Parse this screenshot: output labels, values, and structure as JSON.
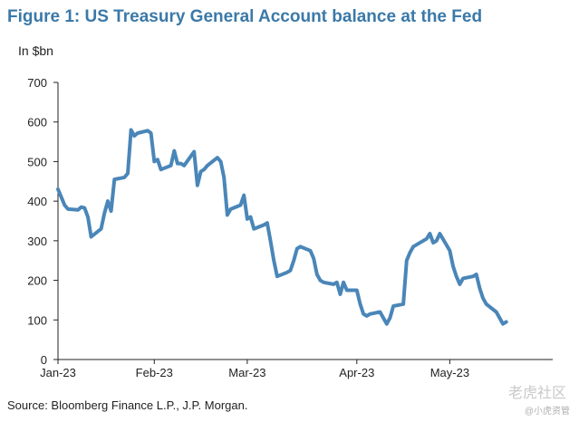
{
  "title": "Figure 1: US Treasury General Account balance at the Fed",
  "unit_label": "In $bn",
  "source": "Source: Bloomberg Finance L.P., J.P. Morgan.",
  "watermark": "老虎社区",
  "watermark_sub": "@小虎资管",
  "colors": {
    "title": "#3b79a8",
    "line": "#4a86b8",
    "axis": "#222222"
  },
  "chart_data": {
    "type": "line",
    "title": "Figure 1: US Treasury General Account balance at the Fed",
    "ylabel": "In $bn",
    "xlabel": "",
    "ylim": [
      0,
      700
    ],
    "yticks": [
      0,
      100,
      200,
      300,
      400,
      500,
      600,
      700
    ],
    "xlim": [
      "2023-01-03",
      "2023-06-01"
    ],
    "xticks": [
      {
        "label": "Jan-23",
        "date": "2023-01-03"
      },
      {
        "label": "Feb-23",
        "date": "2023-02-01"
      },
      {
        "label": "Mar-23",
        "date": "2023-03-01"
      },
      {
        "label": "Apr-23",
        "date": "2023-04-03"
      },
      {
        "label": "May-23",
        "date": "2023-05-01"
      }
    ],
    "grid": false,
    "legend": "none",
    "series": [
      {
        "name": "",
        "points": [
          [
            "2023-01-03",
            430
          ],
          [
            "2023-01-04",
            410
          ],
          [
            "2023-01-05",
            390
          ],
          [
            "2023-01-06",
            380
          ],
          [
            "2023-01-09",
            378
          ],
          [
            "2023-01-10",
            385
          ],
          [
            "2023-01-11",
            383
          ],
          [
            "2023-01-12",
            360
          ],
          [
            "2023-01-13",
            310
          ],
          [
            "2023-01-16",
            330
          ],
          [
            "2023-01-17",
            370
          ],
          [
            "2023-01-18",
            400
          ],
          [
            "2023-01-19",
            375
          ],
          [
            "2023-01-20",
            455
          ],
          [
            "2023-01-23",
            460
          ],
          [
            "2023-01-24",
            470
          ],
          [
            "2023-01-25",
            580
          ],
          [
            "2023-01-26",
            565
          ],
          [
            "2023-01-27",
            572
          ],
          [
            "2023-01-30",
            578
          ],
          [
            "2023-01-31",
            572
          ],
          [
            "2023-02-01",
            500
          ],
          [
            "2023-02-02",
            505
          ],
          [
            "2023-02-03",
            480
          ],
          [
            "2023-02-06",
            490
          ],
          [
            "2023-02-07",
            527
          ],
          [
            "2023-02-08",
            495
          ],
          [
            "2023-02-09",
            495
          ],
          [
            "2023-02-10",
            490
          ],
          [
            "2023-02-13",
            525
          ],
          [
            "2023-02-14",
            440
          ],
          [
            "2023-02-15",
            475
          ],
          [
            "2023-02-16",
            480
          ],
          [
            "2023-02-17",
            490
          ],
          [
            "2023-02-20",
            510
          ],
          [
            "2023-02-21",
            500
          ],
          [
            "2023-02-22",
            460
          ],
          [
            "2023-02-23",
            365
          ],
          [
            "2023-02-24",
            380
          ],
          [
            "2023-02-27",
            390
          ],
          [
            "2023-02-28",
            415
          ],
          [
            "2023-03-01",
            355
          ],
          [
            "2023-03-02",
            360
          ],
          [
            "2023-03-03",
            330
          ],
          [
            "2023-03-06",
            340
          ],
          [
            "2023-03-07",
            345
          ],
          [
            "2023-03-08",
            300
          ],
          [
            "2023-03-09",
            250
          ],
          [
            "2023-03-10",
            210
          ],
          [
            "2023-03-13",
            220
          ],
          [
            "2023-03-14",
            225
          ],
          [
            "2023-03-15",
            250
          ],
          [
            "2023-03-16",
            280
          ],
          [
            "2023-03-17",
            285
          ],
          [
            "2023-03-20",
            275
          ],
          [
            "2023-03-21",
            255
          ],
          [
            "2023-03-22",
            215
          ],
          [
            "2023-03-23",
            200
          ],
          [
            "2023-03-24",
            195
          ],
          [
            "2023-03-27",
            190
          ],
          [
            "2023-03-28",
            195
          ],
          [
            "2023-03-29",
            165
          ],
          [
            "2023-03-30",
            195
          ],
          [
            "2023-03-31",
            175
          ],
          [
            "2023-04-03",
            175
          ],
          [
            "2023-04-04",
            140
          ],
          [
            "2023-04-05",
            115
          ],
          [
            "2023-04-06",
            110
          ],
          [
            "2023-04-07",
            115
          ],
          [
            "2023-04-10",
            120
          ],
          [
            "2023-04-11",
            105
          ],
          [
            "2023-04-12",
            90
          ],
          [
            "2023-04-13",
            105
          ],
          [
            "2023-04-14",
            135
          ],
          [
            "2023-04-17",
            140
          ],
          [
            "2023-04-18",
            250
          ],
          [
            "2023-04-19",
            270
          ],
          [
            "2023-04-20",
            285
          ],
          [
            "2023-04-21",
            290
          ],
          [
            "2023-04-24",
            305
          ],
          [
            "2023-04-25",
            318
          ],
          [
            "2023-04-26",
            295
          ],
          [
            "2023-04-27",
            300
          ],
          [
            "2023-04-28",
            318
          ],
          [
            "2023-05-01",
            275
          ],
          [
            "2023-05-02",
            235
          ],
          [
            "2023-05-03",
            210
          ],
          [
            "2023-05-04",
            190
          ],
          [
            "2023-05-05",
            205
          ],
          [
            "2023-05-08",
            210
          ],
          [
            "2023-05-09",
            215
          ],
          [
            "2023-05-10",
            180
          ],
          [
            "2023-05-11",
            155
          ],
          [
            "2023-05-12",
            140
          ],
          [
            "2023-05-15",
            120
          ],
          [
            "2023-05-16",
            105
          ],
          [
            "2023-05-17",
            90
          ],
          [
            "2023-05-18",
            95
          ]
        ]
      }
    ]
  }
}
